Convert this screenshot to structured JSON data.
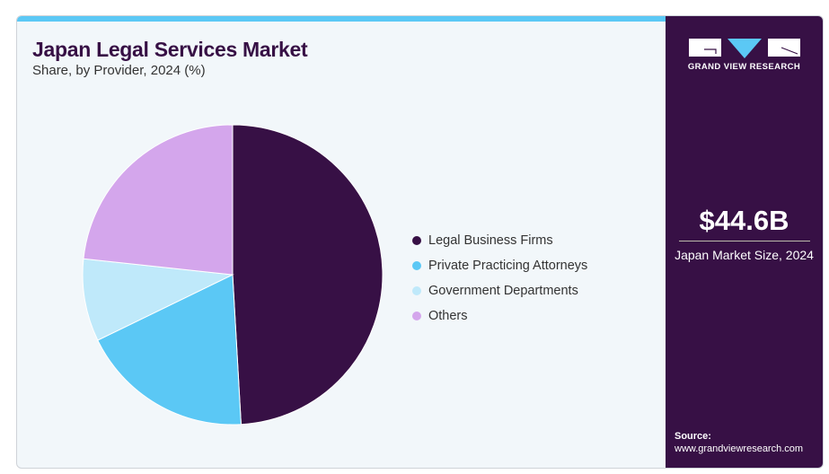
{
  "header": {
    "title": "Japan Legal Services Market",
    "subtitle": "Share, by Provider, 2024 (%)"
  },
  "brand": {
    "name": "GRAND VIEW RESEARCH"
  },
  "stat": {
    "value": "$44.6B",
    "label": "Japan Market Size, 2024"
  },
  "source": {
    "label": "Source:",
    "url": "www.grandviewresearch.com"
  },
  "chart_data": {
    "type": "pie",
    "title": "Japan Legal Services Market",
    "subtitle": "Share, by Provider, 2024 (%)",
    "legend_position": "right",
    "categories": [
      "Legal Business Firms",
      "Private Practicing Attorneys",
      "Government Departments",
      "Others"
    ],
    "values": [
      49.1,
      18.7,
      8.9,
      23.3
    ],
    "colors": [
      "#371045",
      "#5bc8f5",
      "#bfe9fa",
      "#d4a6ec"
    ]
  }
}
